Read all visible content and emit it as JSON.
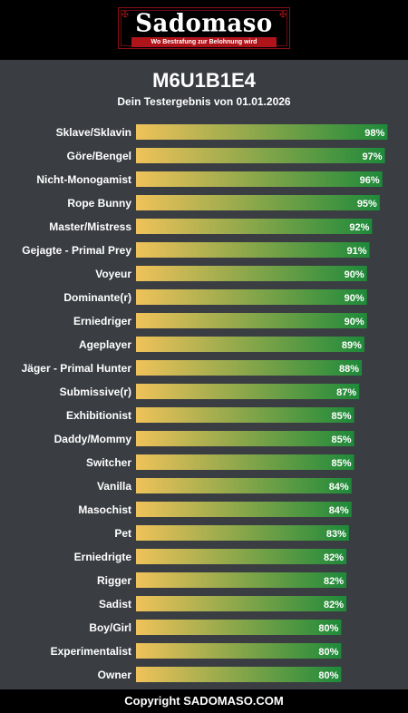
{
  "brand": {
    "logo_text": "Sadomaso",
    "tagline": "Wo Bestrafung zur Belohnung wird"
  },
  "header": {
    "title": "M6U1B1E4",
    "subtitle": "Dein Testergebnis von 01.01.2026"
  },
  "colors": {
    "bar_start": "#f0c25a",
    "bar_end": "#1e8a3a",
    "background": "#3a3d42",
    "accent": "#b0141b"
  },
  "chart_data": {
    "type": "bar",
    "orientation": "horizontal",
    "unit": "%",
    "xlim": [
      0,
      100
    ],
    "grid": false,
    "categories": [
      "Sklave/Sklavin",
      "Göre/Bengel",
      "Nicht-Monogamist",
      "Rope Bunny",
      "Master/Mistress",
      "Gejagte - Primal Prey",
      "Voyeur",
      "Dominante(r)",
      "Erniedriger",
      "Ageplayer",
      "Jäger - Primal Hunter",
      "Submissive(r)",
      "Exhibitionist",
      "Daddy/Mommy",
      "Switcher",
      "Vanilla",
      "Masochist",
      "Pet",
      "Erniedrigte",
      "Rigger",
      "Sadist",
      "Boy/Girl",
      "Experimentalist",
      "Owner"
    ],
    "values": [
      98,
      97,
      96,
      95,
      92,
      91,
      90,
      90,
      90,
      89,
      88,
      87,
      85,
      85,
      85,
      84,
      84,
      83,
      82,
      82,
      82,
      80,
      80,
      80
    ],
    "labels": [
      "98%",
      "97%",
      "96%",
      "95%",
      "92%",
      "91%",
      "90%",
      "90%",
      "90%",
      "89%",
      "88%",
      "87%",
      "85%",
      "85%",
      "85%",
      "84%",
      "84%",
      "83%",
      "82%",
      "82%",
      "82%",
      "80%",
      "80%",
      "80%"
    ]
  },
  "footer": {
    "copyright": "Copyright SADOMASO.COM"
  }
}
